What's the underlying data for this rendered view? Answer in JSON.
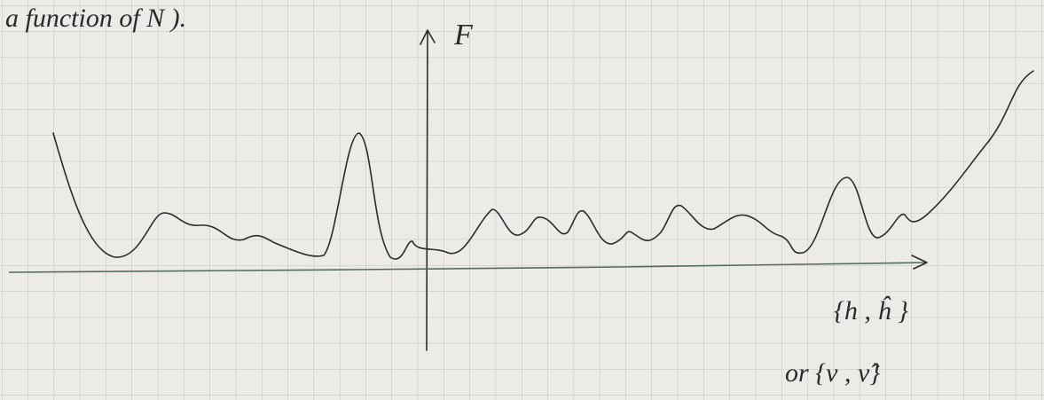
{
  "header": {
    "text": "a function of N )."
  },
  "axes": {
    "y_label": "F",
    "x_label_line1": "{h , ĥ }",
    "x_label_line2": "or {ν , ν̂}"
  }
}
